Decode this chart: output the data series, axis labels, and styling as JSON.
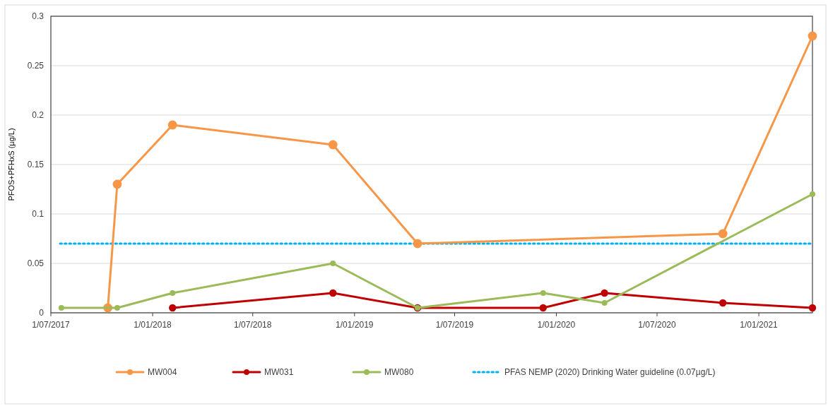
{
  "chart_data": {
    "type": "line",
    "ylabel": "PFOS+PFHxS (µg/L)",
    "xlim": [
      "2017-07-01",
      "2021-04-08"
    ],
    "xticks": [
      {
        "value": "2017-07-01",
        "label": "1/07/2017"
      },
      {
        "value": "2018-01-01",
        "label": "1/01/2018"
      },
      {
        "value": "2018-07-01",
        "label": "1/07/2018"
      },
      {
        "value": "2019-01-01",
        "label": "1/01/2019"
      },
      {
        "value": "2019-07-01",
        "label": "1/07/2019"
      },
      {
        "value": "2020-01-01",
        "label": "1/01/2020"
      },
      {
        "value": "2020-07-01",
        "label": "1/07/2020"
      },
      {
        "value": "2021-01-01",
        "label": "1/01/2021"
      }
    ],
    "ylim": [
      0,
      0.3
    ],
    "yticks": [
      0,
      0.05,
      0.1,
      0.15,
      0.2,
      0.25,
      0.3
    ],
    "grid": "y",
    "legend": "bottom",
    "marker": "circle",
    "line_style": "solid",
    "series": [
      {
        "name": "MW004",
        "color": "#f79646",
        "x": [
          "2017-10-12",
          "2017-10-29",
          "2018-02-06",
          "2018-11-23",
          "2019-04-25",
          "2020-10-28",
          "2021-04-08"
        ],
        "values": [
          0.005,
          0.13,
          0.19,
          0.17,
          0.07,
          0.08,
          0.28
        ]
      },
      {
        "name": "MW031",
        "color": "#c00000",
        "x": [
          "2018-02-06",
          "2018-11-23",
          "2019-04-25",
          "2019-12-08",
          "2020-03-28",
          "2020-10-28",
          "2021-04-08"
        ],
        "values": [
          0.005,
          0.02,
          0.005,
          0.005,
          0.02,
          0.01,
          0.005
        ]
      },
      {
        "name": "MW080",
        "color": "#9bbb59",
        "x": [
          "2017-07-20",
          "2017-10-29",
          "2018-02-06",
          "2018-11-23",
          "2019-04-25",
          "2019-12-08",
          "2020-03-28",
          "2021-04-08"
        ],
        "values": [
          0.005,
          0.005,
          0.02,
          0.05,
          0.005,
          0.02,
          0.01,
          0.12
        ]
      }
    ],
    "ref_lines": [
      {
        "axis": "y",
        "value": 0.07,
        "label": "PFAS NEMP (2020) Drinking Water guideline (0.07µg/L)",
        "color": "#00b0f0",
        "line_style": "dotted"
      }
    ]
  }
}
